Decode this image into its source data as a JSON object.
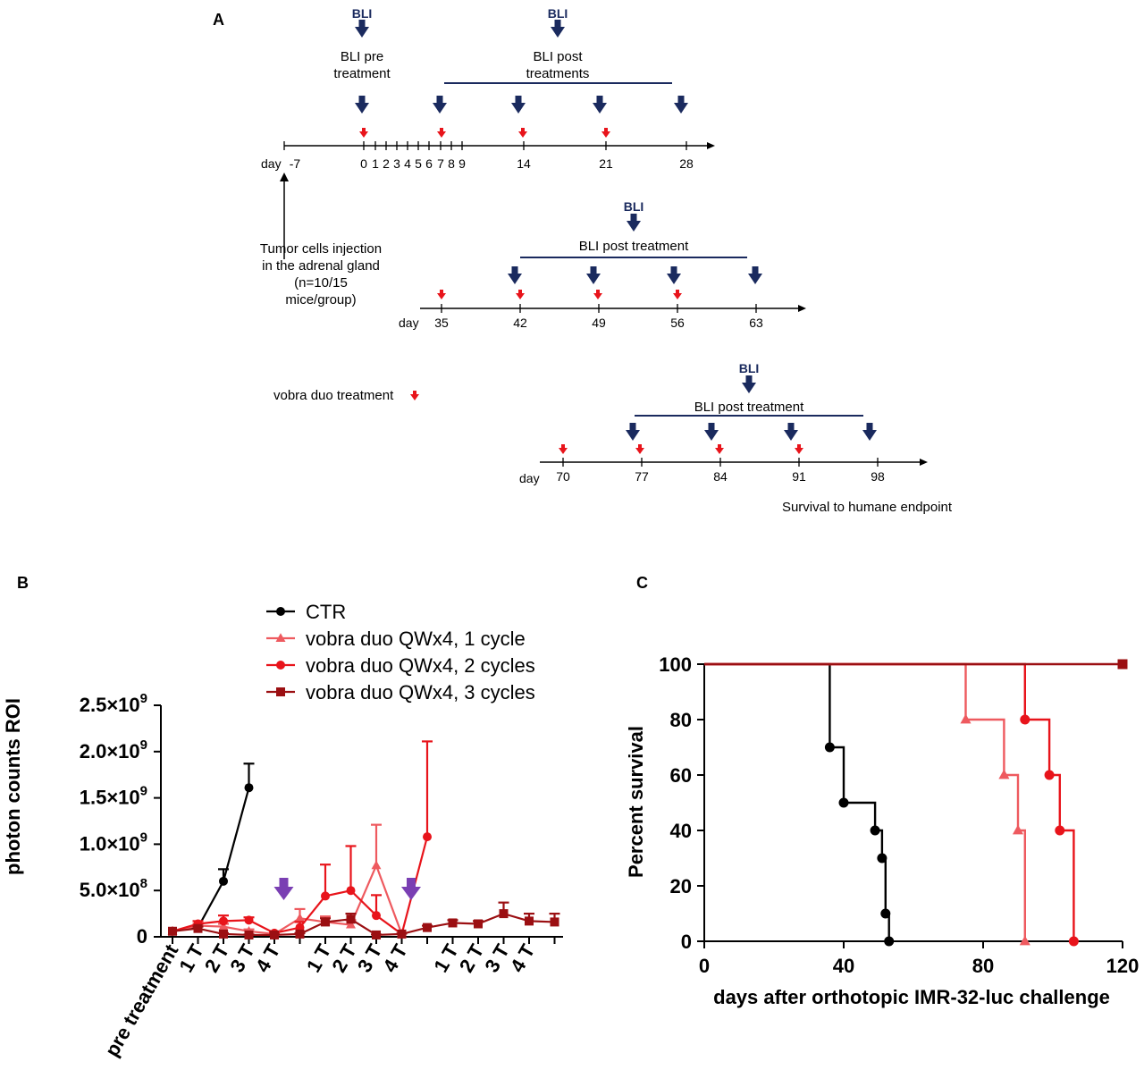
{
  "colors": {
    "navy": "#1a2a5e",
    "red": "#e8141b",
    "ctr": "#000000",
    "cycle1": "#ee5a5f",
    "cycle2": "#e8141b",
    "cycle3": "#9b0f12",
    "purple": "#7a3fb3"
  },
  "panel_a": {
    "label": "A",
    "bli_label": "BLI",
    "bli_pre": [
      "BLI pre",
      "treatment"
    ],
    "bli_post_1": [
      "BLI post",
      "treatments"
    ],
    "bli_post_2": "BLI post treatment",
    "bli_post_3": "BLI post treatment",
    "day_label": "day",
    "timeline1_days": [
      "-7",
      "0",
      "1",
      "2",
      "3",
      "4",
      "5",
      "6",
      "7",
      "8",
      "9",
      "14",
      "21",
      "28"
    ],
    "timeline2_days": [
      "35",
      "42",
      "49",
      "56",
      "63"
    ],
    "timeline3_days": [
      "70",
      "77",
      "84",
      "91",
      "98"
    ],
    "injection_note": [
      "Tumor cells injection",
      "in the adrenal gland",
      "(n=10/15",
      "mice/group)"
    ],
    "legend_treatment": "vobra duo  treatment",
    "survival_note": "Survival to humane endpoint"
  },
  "chart_data": [
    {
      "panel": "B",
      "type": "line",
      "ylabel": "photon counts ROI",
      "ylim": [
        0,
        2500000000
      ],
      "yticks": [
        {
          "value": 0,
          "label": "0"
        },
        {
          "value": 500000000,
          "label": "5.0×10",
          "exp": "8"
        },
        {
          "value": 1000000000,
          "label": "1.0×10",
          "exp": "9"
        },
        {
          "value": 1500000000,
          "label": "1.5×10",
          "exp": "9"
        },
        {
          "value": 2000000000,
          "label": "2.0×10",
          "exp": "9"
        },
        {
          "value": 2500000000,
          "label": "2.5×10",
          "exp": "9"
        }
      ],
      "categories": [
        "pre treatment",
        "1 T",
        "2 T",
        "3 T",
        "4 T",
        "",
        "1 T",
        "2 T",
        "3 T",
        "4 T",
        "",
        "1 T",
        "2 T",
        "3 T",
        "4 T",
        ""
      ],
      "treatment_markers_at": [
        5,
        10
      ],
      "series": [
        {
          "name": "CTR",
          "marker": "circle",
          "color": "ctr",
          "points": [
            [
              0,
              60000000,
              0
            ],
            [
              1,
              100000000,
              20000000
            ],
            [
              2,
              600000000,
              130000000
            ],
            [
              3,
              1610000000,
              260000000
            ]
          ]
        },
        {
          "name": "vobra duo QWx4, 1 cycle",
          "marker": "triangle",
          "color": "cycle1",
          "points": [
            [
              0,
              60000000,
              0
            ],
            [
              1,
              120000000,
              20000000
            ],
            [
              2,
              110000000,
              30000000
            ],
            [
              3,
              60000000,
              20000000
            ],
            [
              4,
              30000000,
              10000000
            ],
            [
              5,
              200000000,
              100000000
            ],
            [
              6,
              160000000,
              60000000
            ],
            [
              7,
              130000000,
              50000000
            ],
            [
              8,
              770000000,
              440000000
            ],
            [
              9,
              30000000,
              0
            ]
          ]
        },
        {
          "name": "vobra duo QWx4, 2 cycles",
          "marker": "circle",
          "color": "cycle2",
          "points": [
            [
              0,
              60000000,
              0
            ],
            [
              1,
              140000000,
              30000000
            ],
            [
              2,
              170000000,
              60000000
            ],
            [
              3,
              180000000,
              30000000
            ],
            [
              4,
              40000000,
              10000000
            ],
            [
              5,
              100000000,
              60000000
            ],
            [
              6,
              440000000,
              340000000
            ],
            [
              7,
              500000000,
              480000000
            ],
            [
              8,
              230000000,
              220000000
            ],
            [
              9,
              30000000,
              0
            ],
            [
              10,
              1080000000,
              1030000000
            ]
          ]
        },
        {
          "name": "vobra duo QWx4, 3 cycles",
          "marker": "square",
          "color": "cycle3",
          "points": [
            [
              0,
              60000000,
              0
            ],
            [
              1,
              90000000,
              20000000
            ],
            [
              2,
              30000000,
              10000000
            ],
            [
              3,
              20000000,
              5000000
            ],
            [
              4,
              20000000,
              5000000
            ],
            [
              5,
              30000000,
              10000000
            ],
            [
              6,
              160000000,
              40000000
            ],
            [
              7,
              190000000,
              60000000
            ],
            [
              8,
              20000000,
              5000000
            ],
            [
              9,
              30000000,
              5000000
            ],
            [
              10,
              100000000,
              20000000
            ],
            [
              11,
              150000000,
              30000000
            ],
            [
              12,
              140000000,
              30000000
            ],
            [
              13,
              250000000,
              120000000
            ],
            [
              14,
              170000000,
              80000000
            ],
            [
              15,
              160000000,
              90000000
            ]
          ]
        }
      ]
    },
    {
      "panel": "C",
      "type": "line",
      "xlabel": "days after orthotopic IMR-32-luc challenge",
      "ylabel": "Percent survival",
      "xlim": [
        0,
        120
      ],
      "ylim": [
        0,
        100
      ],
      "xticks": [
        0,
        40,
        80,
        120
      ],
      "yticks": [
        0,
        20,
        40,
        60,
        80,
        100
      ],
      "series": [
        {
          "name": "CTR",
          "marker": "circle",
          "color": "ctr",
          "steps": [
            [
              0,
              100
            ],
            [
              36,
              70
            ],
            [
              40,
              50
            ],
            [
              49,
              40
            ],
            [
              51,
              30
            ],
            [
              52,
              10
            ],
            [
              53,
              0
            ]
          ],
          "points": [
            [
              36,
              70
            ],
            [
              40,
              50
            ],
            [
              49,
              40
            ],
            [
              51,
              30
            ],
            [
              52,
              10
            ],
            [
              53,
              0
            ]
          ]
        },
        {
          "name": "vobra duo QWx4, 1 cycle",
          "marker": "triangle",
          "color": "cycle1",
          "steps": [
            [
              0,
              100
            ],
            [
              75,
              80
            ],
            [
              86,
              60
            ],
            [
              90,
              40
            ],
            [
              92,
              0
            ]
          ],
          "points": [
            [
              75,
              80
            ],
            [
              86,
              60
            ],
            [
              90,
              40
            ],
            [
              92,
              0
            ]
          ]
        },
        {
          "name": "vobra duo QWx4, 2 cycles",
          "marker": "circle",
          "color": "cycle2",
          "steps": [
            [
              0,
              100
            ],
            [
              92,
              80
            ],
            [
              99,
              60
            ],
            [
              102,
              40
            ],
            [
              106,
              0
            ]
          ],
          "points": [
            [
              92,
              80
            ],
            [
              99,
              60
            ],
            [
              102,
              40
            ],
            [
              106,
              0
            ]
          ]
        },
        {
          "name": "vobra duo QWx4, 3 cycles",
          "marker": "square",
          "color": "cycle3",
          "steps": [
            [
              0,
              100
            ],
            [
              120,
              100
            ]
          ],
          "points": [
            [
              120,
              100
            ]
          ]
        }
      ]
    }
  ]
}
